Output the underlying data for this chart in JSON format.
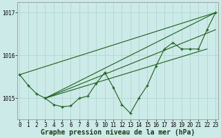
{
  "hours": [
    0,
    1,
    2,
    3,
    4,
    5,
    6,
    7,
    8,
    9,
    10,
    11,
    12,
    13,
    14,
    15,
    16,
    17,
    18,
    19,
    20,
    21,
    22,
    23
  ],
  "pressure": [
    1015.55,
    1015.3,
    1015.1,
    1015.0,
    1014.85,
    1014.8,
    1014.82,
    1015.0,
    1015.05,
    1015.35,
    1015.6,
    1015.25,
    1014.85,
    1014.65,
    1015.0,
    1015.3,
    1015.75,
    1016.15,
    1016.3,
    1016.15,
    1016.15,
    1016.15,
    1016.6,
    1017.0
  ],
  "trend1_x": [
    0,
    23
  ],
  "trend1_y": [
    1015.55,
    1017.0
  ],
  "trend2_x": [
    3,
    23
  ],
  "trend2_y": [
    1015.0,
    1017.0
  ],
  "trend3_x": [
    3,
    23
  ],
  "trend3_y": [
    1015.0,
    1016.6
  ],
  "trend4_x": [
    3,
    22
  ],
  "trend4_y": [
    1015.0,
    1016.15
  ],
  "bg_color": "#cceae7",
  "grid_color": "#aad4d0",
  "line_color": "#1a5e1a",
  "marker": "+",
  "markersize": 3.5,
  "linewidth": 0.8,
  "ylim": [
    1014.5,
    1017.25
  ],
  "yticks": [
    1015,
    1016,
    1017
  ],
  "xticks": [
    0,
    1,
    2,
    3,
    4,
    5,
    6,
    7,
    8,
    9,
    10,
    11,
    12,
    13,
    14,
    15,
    16,
    17,
    18,
    19,
    20,
    21,
    22,
    23
  ],
  "xlabel": "Graphe pression niveau de la mer (hPa)",
  "xlabel_fontsize": 7,
  "tick_fontsize": 5.5
}
